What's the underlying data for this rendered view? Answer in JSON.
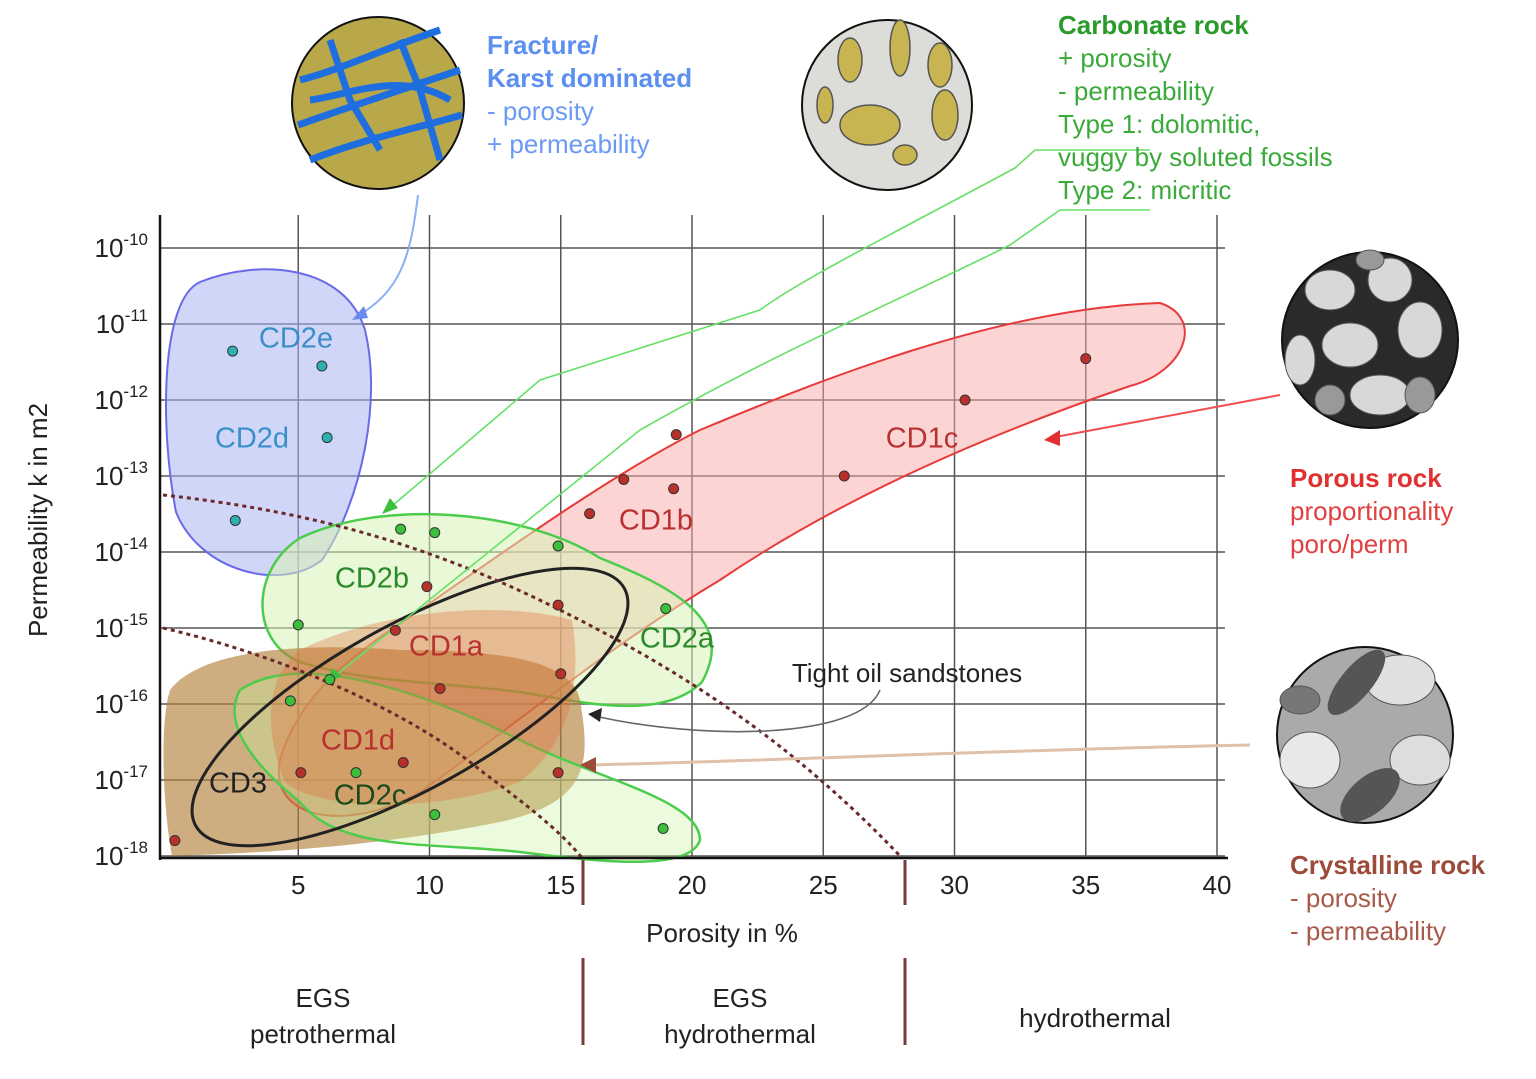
{
  "chart_data": {
    "type": "scatter",
    "x_label": "Porosity in %",
    "y_label": "Permeability k in m2",
    "xlim": [
      0,
      40
    ],
    "xticks": [
      5,
      10,
      15,
      20,
      25,
      30,
      35,
      40
    ],
    "ylim": [
      1e-18,
      1e-10
    ],
    "yticks": [
      {
        "value": 1e-10,
        "label": "10-10"
      },
      {
        "value": 1e-11,
        "label": "10-11"
      },
      {
        "value": 1e-12,
        "label": "10-12"
      },
      {
        "value": 1e-13,
        "label": "10-13"
      },
      {
        "value": 1e-14,
        "label": "10-14"
      },
      {
        "value": 1e-15,
        "label": "10-15"
      },
      {
        "value": 1e-16,
        "label": "10-16"
      },
      {
        "value": 1e-17,
        "label": "10-17"
      },
      {
        "value": 1e-18,
        "label": "10-18"
      }
    ],
    "log_y": true,
    "grid": true,
    "series": [
      {
        "color": "#2fb0b0",
        "x": [
          2.5,
          5.9,
          6.1,
          2.6
        ],
        "values": [
          4.4e-12,
          2.8e-12,
          3.2e-13,
          2.6e-14
        ]
      },
      {
        "color": "#b8302a",
        "x": [
          35.0,
          30.4,
          25.8,
          19.4,
          17.4,
          19.3,
          16.1,
          9.9,
          14.9,
          15.0,
          10.4,
          9.0,
          5.1,
          14.9,
          0.3,
          8.7
        ],
        "values": [
          3.5e-12,
          1e-12,
          1e-13,
          3.5e-13,
          9e-14,
          6.8e-14,
          3.2e-14,
          3.5e-15,
          2e-15,
          2.5e-16,
          1.6e-16,
          1.7e-17,
          1.25e-17,
          1.25e-17,
          1.6e-18,
          9.3e-16
        ]
      },
      {
        "color": "#3cc03c",
        "x": [
          8.9,
          10.2,
          14.9,
          19.0,
          5.0,
          4.7,
          6.2,
          7.2,
          10.2,
          18.9
        ],
        "values": [
          2e-14,
          1.8e-14,
          1.2e-14,
          1.8e-15,
          1.1e-15,
          1.1e-16,
          2.1e-16,
          1.25e-17,
          3.5e-18,
          2.3e-18
        ]
      }
    ],
    "region_labels": [
      "CD2e",
      "CD2d",
      "CD1c",
      "CD1b",
      "CD2b",
      "CD1a",
      "CD2a",
      "CD1d",
      "CD3",
      "CD2c"
    ],
    "callout": "Tight oil sandstones",
    "rock_types": [
      {
        "title": [
          "Fracture/",
          "Karst dominated"
        ],
        "lines": [
          "-  porosity",
          "+ permeability"
        ]
      },
      {
        "title": [
          "Carbonate rock"
        ],
        "lines": [
          "+ porosity",
          "-  permeability",
          "Type 1: dolomitic,",
          "vuggy by soluted fossils",
          "Type 2: micritic"
        ]
      },
      {
        "title": [
          "Porous rock"
        ],
        "lines": [
          "proportionality",
          "poro/perm"
        ]
      },
      {
        "title": [
          "Crystalline rock"
        ],
        "lines": [
          "-  porosity",
          "-  permeability"
        ]
      }
    ],
    "zones": [
      [
        "EGS",
        "petrothermal"
      ],
      [
        "EGS",
        "hydrothermal"
      ],
      [
        "hydrothermal"
      ]
    ]
  }
}
